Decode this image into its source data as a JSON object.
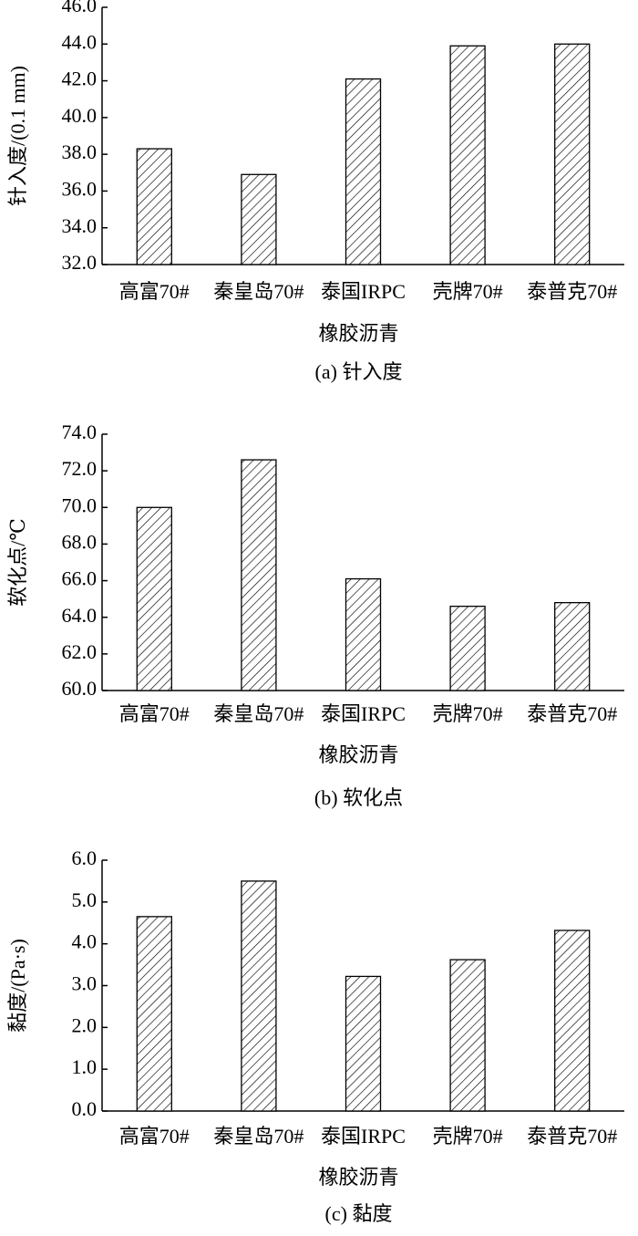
{
  "chart_data": [
    {
      "type": "bar",
      "caption": "(a) 针入度",
      "x_label": "橡胶沥青",
      "y_label": "针入度/(0.1 mm)",
      "categories": [
        "高富70#",
        "秦皇岛70#",
        "泰国IRPC",
        "壳牌70#",
        "泰普克70#"
      ],
      "values": [
        38.3,
        36.9,
        42.1,
        43.9,
        44.0
      ],
      "color": "#000000",
      "ylim": [
        32,
        46
      ],
      "yticks": [
        {
          "value": 32,
          "label": "32.0"
        },
        {
          "value": 34,
          "label": "34.0"
        },
        {
          "value": 36,
          "label": "36.0"
        },
        {
          "value": 38,
          "label": "38.0"
        },
        {
          "value": 40,
          "label": "40.0"
        },
        {
          "value": 42,
          "label": "42.0"
        },
        {
          "value": 44,
          "label": "44.0"
        },
        {
          "value": 46,
          "label": "46.0"
        }
      ]
    },
    {
      "type": "bar",
      "caption": "(b) 软化点",
      "x_label": "橡胶沥青",
      "y_label": "软化点/℃",
      "categories": [
        "高富70#",
        "秦皇岛70#",
        "泰国IRPC",
        "壳牌70#",
        "泰普克70#"
      ],
      "values": [
        70.0,
        72.6,
        66.1,
        64.6,
        64.8
      ],
      "color": "#000000",
      "ylim": [
        60,
        74
      ],
      "yticks": [
        {
          "value": 60,
          "label": "60.0"
        },
        {
          "value": 62,
          "label": "62.0"
        },
        {
          "value": 64,
          "label": "64.0"
        },
        {
          "value": 66,
          "label": "66.0"
        },
        {
          "value": 68,
          "label": "68.0"
        },
        {
          "value": 70,
          "label": "70.0"
        },
        {
          "value": 72,
          "label": "72.0"
        },
        {
          "value": 74,
          "label": "74.0"
        }
      ]
    },
    {
      "type": "bar",
      "caption": "(c) 黏度",
      "x_label": "橡胶沥青",
      "y_label": "黏度/(Pa·s)",
      "categories": [
        "高富70#",
        "秦皇岛70#",
        "泰国IRPC",
        "壳牌70#",
        "泰普克70#"
      ],
      "values": [
        4.65,
        5.5,
        3.22,
        3.62,
        4.32
      ],
      "color": "#000000",
      "ylim": [
        0,
        6
      ],
      "yticks": [
        {
          "value": 0,
          "label": "0.0"
        },
        {
          "value": 1,
          "label": "1.0"
        },
        {
          "value": 2,
          "label": "2.0"
        },
        {
          "value": 3,
          "label": "3.0"
        },
        {
          "value": 4,
          "label": "4.0"
        },
        {
          "value": 5,
          "label": "5.0"
        },
        {
          "value": 6,
          "label": "6.0"
        }
      ]
    }
  ]
}
